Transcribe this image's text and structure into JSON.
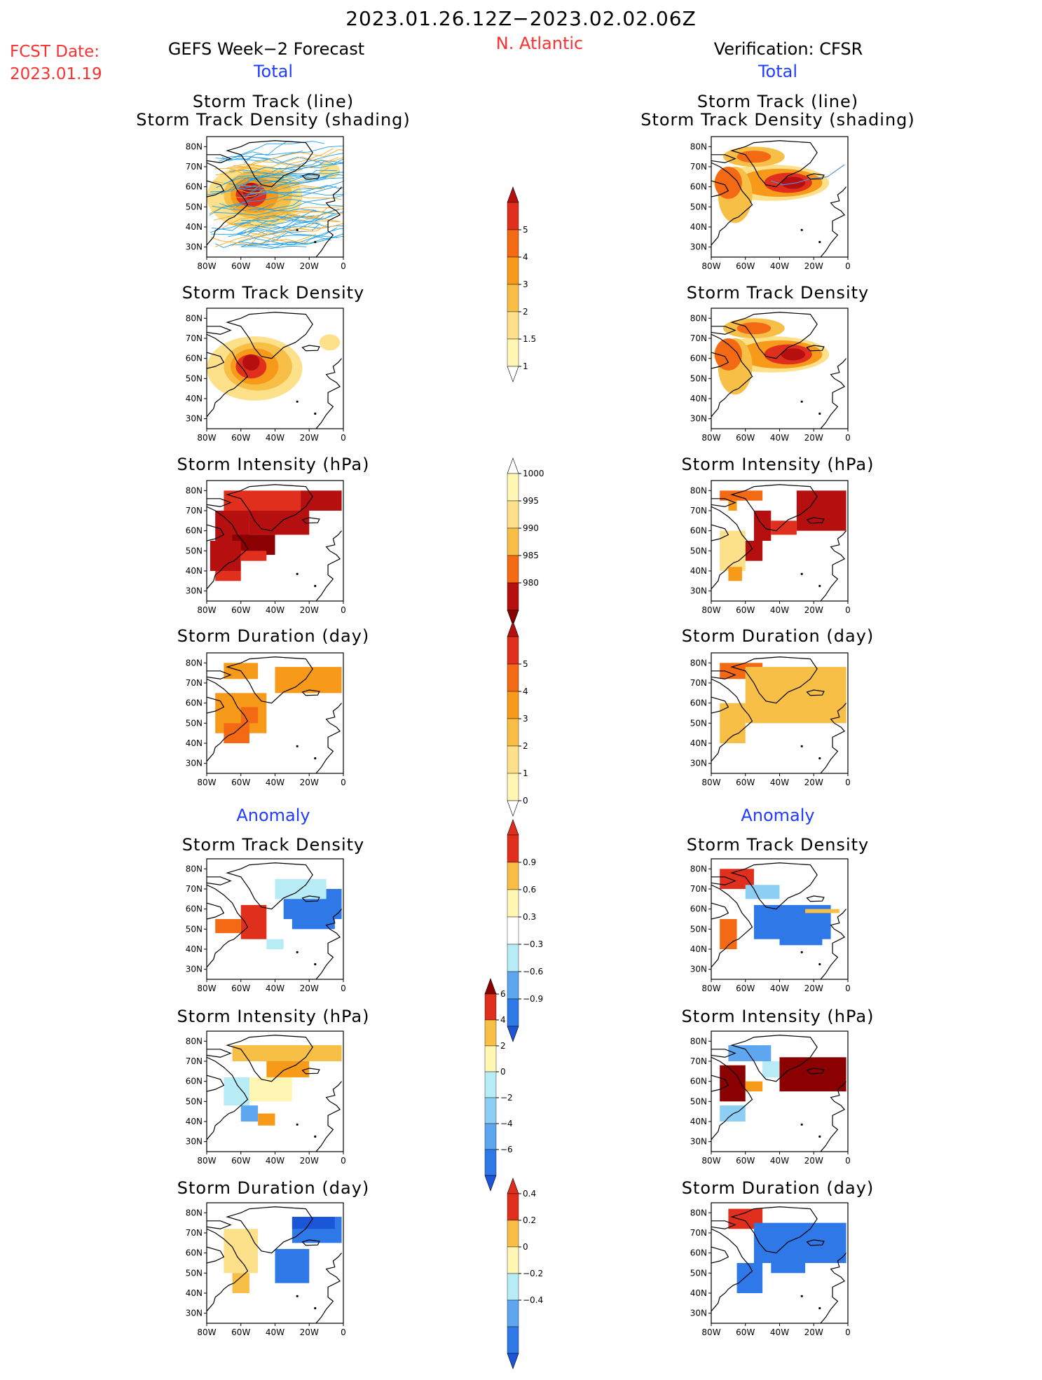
{
  "header": {
    "date_range": "2023.01.26.12Z−2023.02.02.06Z",
    "fcst_label": "FCST Date:",
    "fcst_date": "2023.01.19",
    "left_title": "GEFS Week−2 Forecast",
    "region": "N. Atlantic",
    "right_title": "Verification: CFSR",
    "total_left": "Total",
    "total_right": "Total",
    "anomaly_left": "Anomaly",
    "anomaly_right": "Anomaly"
  },
  "panel_titles": {
    "track_line": "Storm Track (line)",
    "track_shading": "Storm Track Density (shading)",
    "track_density": "Storm Track Density",
    "intensity": "Storm Intensity (hPa)",
    "duration": "Storm Duration (day)"
  },
  "map_axes": {
    "lat_labels": [
      "80N",
      "70N",
      "60N",
      "50N",
      "40N",
      "30N"
    ],
    "lon_labels": [
      "80W",
      "60W",
      "40W",
      "20W",
      "0"
    ]
  },
  "colorbars": {
    "density": [
      "1",
      "1.5",
      "2",
      "3",
      "4",
      "5"
    ],
    "intensity": [
      "1000",
      "995",
      "990",
      "985",
      "980"
    ],
    "duration": [
      "0",
      "1",
      "2",
      "3",
      "4",
      "5"
    ],
    "density_anom": [
      "0.9",
      "0.6",
      "0.3",
      "−0.3",
      "−0.6",
      "−0.9"
    ],
    "intensity_anom": [
      "6",
      "4",
      "2",
      "0",
      "−2",
      "−4",
      "−6"
    ],
    "duration_anom": [
      "0.4",
      "0.2",
      "0",
      "−0.2",
      "−0.4"
    ]
  },
  "colors": {
    "warm": [
      "#fff6b4",
      "#fde08a",
      "#f7bf45",
      "#f79a1a",
      "#f46a14",
      "#e0301d",
      "#b50f0f",
      "#8b0000"
    ],
    "cool": [
      "#b7ecf6",
      "#8dcff4",
      "#5fa6f0",
      "#2f78e8",
      "#1b56d8"
    ],
    "track_gefs_a": "#1ea0e8",
    "track_gefs_b": "#f7a823"
  }
}
